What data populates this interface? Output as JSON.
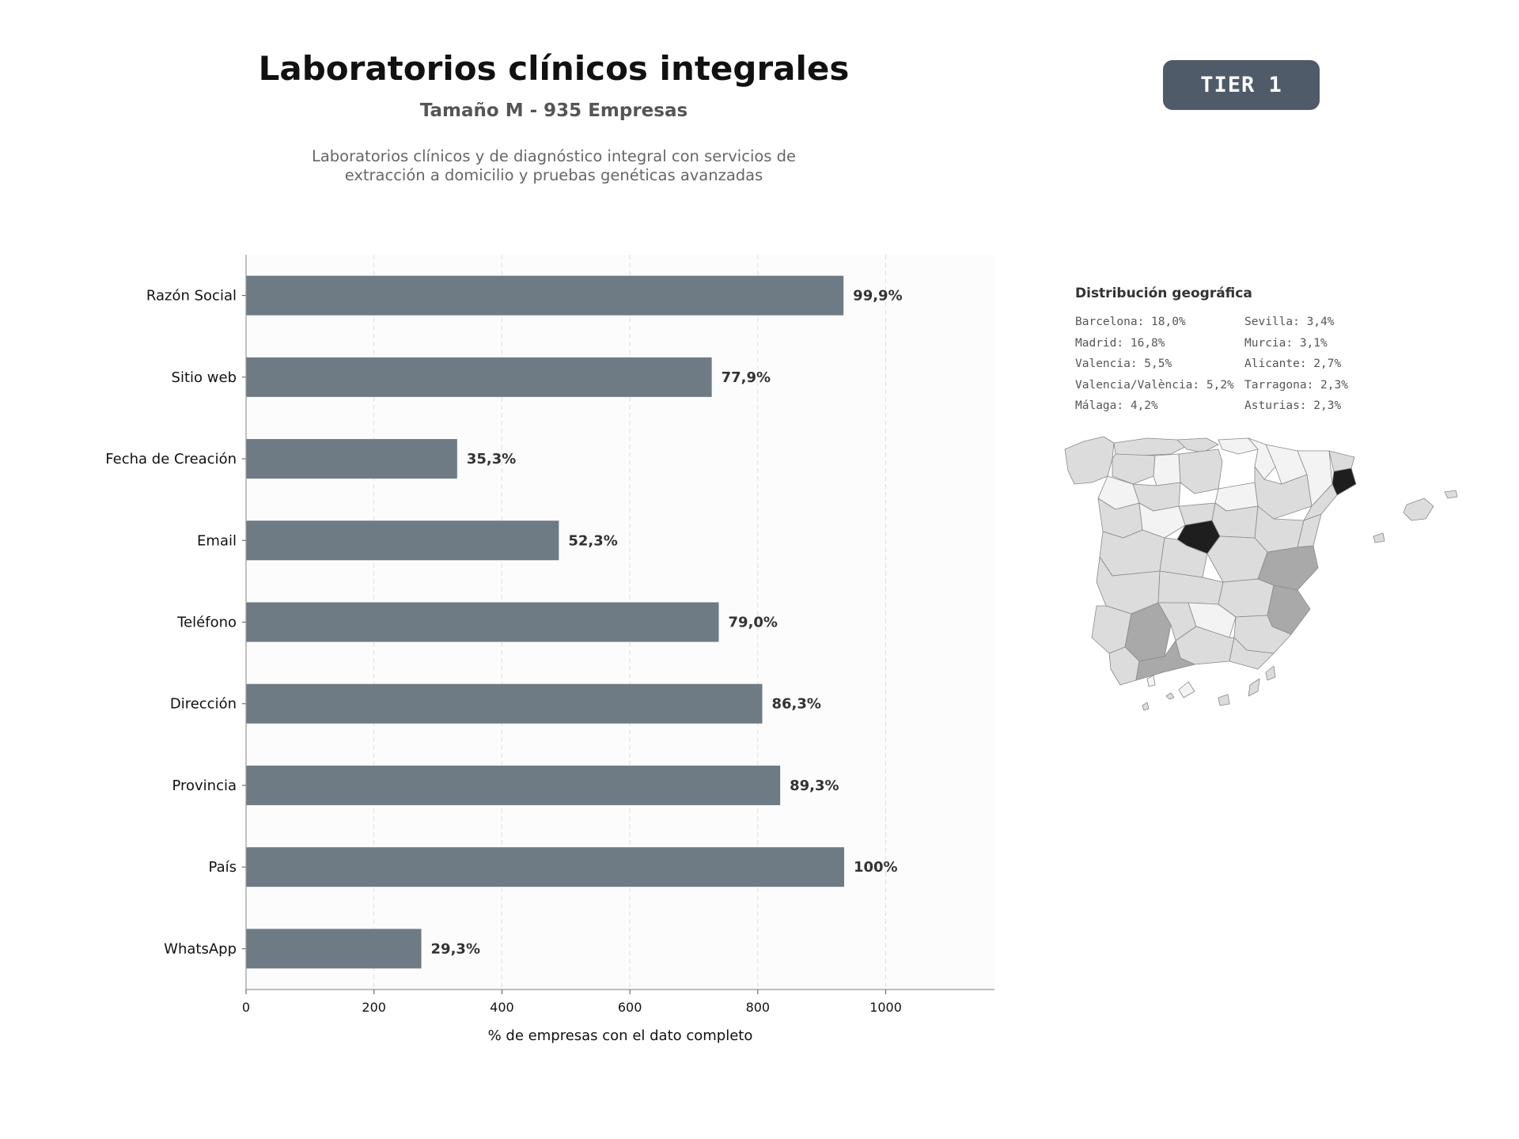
{
  "header": {
    "title": "Laboratorios clínicos integrales",
    "subtitle": "Tamaño M - 935 Empresas",
    "description_line1": "Laboratorios clínicos y de diagnóstico integral con servicios de",
    "description_line2": "extracción a domicilio y pruebas genéticas avanzadas",
    "tier_badge": "TIER 1"
  },
  "chart_data": {
    "type": "bar",
    "orientation": "horizontal",
    "categories": [
      "Razón Social",
      "Sitio web",
      "Fecha de Creación",
      "Email",
      "Teléfono",
      "Dirección",
      "Provincia",
      "País",
      "WhatsApp"
    ],
    "values": [
      934,
      728,
      330,
      489,
      739,
      807,
      835,
      935,
      274
    ],
    "data_labels": [
      "99,9%",
      "77,9%",
      "35,3%",
      "52,3%",
      "79,0%",
      "86,3%",
      "89,3%",
      "100%",
      "29,3%"
    ],
    "xlabel": "% de empresas con el dato completo",
    "ylabel": "",
    "xlim": [
      0,
      1170
    ],
    "xticks": [
      "0",
      "200",
      "400",
      "600",
      "800",
      "1000"
    ],
    "xtick_values": [
      0,
      200,
      400,
      600,
      800,
      1000
    ],
    "grid": "vertical dashed",
    "bar_color": "#6e7a84"
  },
  "geo": {
    "title": "Distribución geográfica",
    "left_column": [
      "Barcelona: 18,0%",
      "Madrid: 16,8%",
      "Valencia: 5,5%",
      "Valencia/València: 5,2%",
      "Málaga: 4,2%"
    ],
    "right_column": [
      "Sevilla: 3,4%",
      "Murcia: 3,1%",
      "Alicante: 2,7%",
      "Tarragona: 2,3%",
      "Asturias: 2,3%"
    ],
    "map_colors": {
      "high": "#1e1e1e",
      "mid": "#a9a9a9",
      "low": "#dcdcdc",
      "min": "#f3f3f3"
    }
  }
}
